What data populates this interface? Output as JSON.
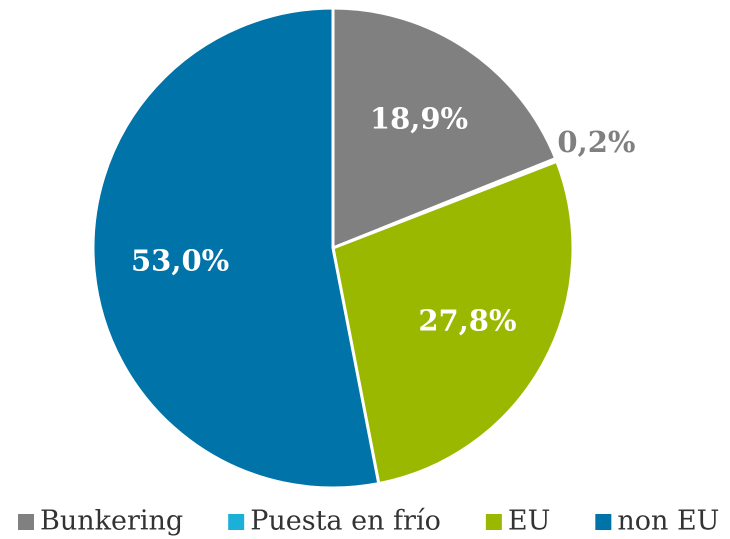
{
  "chart_data": {
    "type": "pie",
    "categories": [
      "Bunkering",
      "Puesta en frío",
      "EU",
      "non EU"
    ],
    "values": [
      18.9,
      0.2,
      27.8,
      53.0
    ],
    "value_labels": [
      "18,9%",
      "0,2%",
      "27,8%",
      "53,0%"
    ],
    "colors": [
      "#808080",
      "#1ab0d8",
      "#9bb800",
      "#0073a8"
    ],
    "legend": "bottom"
  }
}
